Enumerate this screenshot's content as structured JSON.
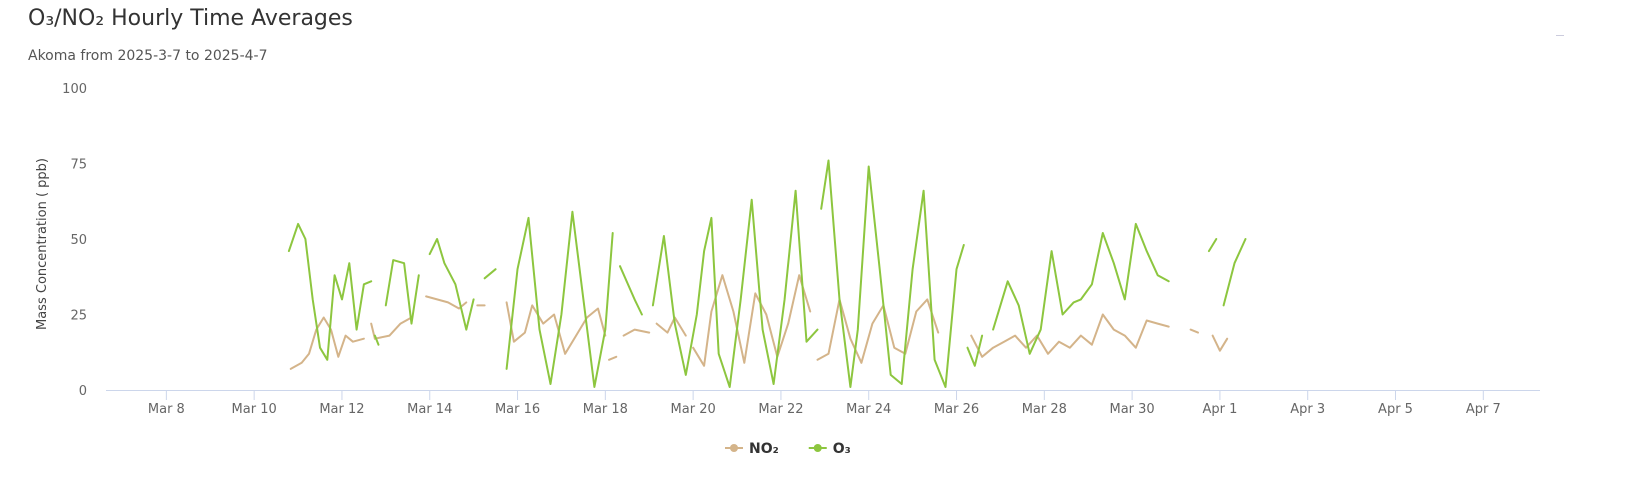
{
  "header": {
    "title": "O₃/NO₂ Hourly Time Averages",
    "subtitle": "Akoma from 2025-3-7 to 2025-4-7"
  },
  "chart_data": {
    "type": "line",
    "ylabel": "Mass Concentration ( ppb)",
    "ylim": [
      0,
      100
    ],
    "yticks": [
      0,
      25,
      50,
      75,
      100
    ],
    "xlim": [
      "2025-03-06 15:00",
      "2025-04-08 07:00"
    ],
    "xticks": [
      {
        "date": "2025-03-08",
        "label": "Mar 8"
      },
      {
        "date": "2025-03-10",
        "label": "Mar 10"
      },
      {
        "date": "2025-03-12",
        "label": "Mar 12"
      },
      {
        "date": "2025-03-14",
        "label": "Mar 14"
      },
      {
        "date": "2025-03-16",
        "label": "Mar 16"
      },
      {
        "date": "2025-03-18",
        "label": "Mar 18"
      },
      {
        "date": "2025-03-20",
        "label": "Mar 20"
      },
      {
        "date": "2025-03-22",
        "label": "Mar 22"
      },
      {
        "date": "2025-03-24",
        "label": "Mar 24"
      },
      {
        "date": "2025-03-26",
        "label": "Mar 26"
      },
      {
        "date": "2025-03-28",
        "label": "Mar 28"
      },
      {
        "date": "2025-03-30",
        "label": "Mar 30"
      },
      {
        "date": "2025-04-01",
        "label": "Apr 1"
      },
      {
        "date": "2025-04-03",
        "label": "Apr 3"
      },
      {
        "date": "2025-04-05",
        "label": "Apr 5"
      },
      {
        "date": "2025-04-07",
        "label": "Apr 7"
      }
    ],
    "grid": false,
    "legend_position": "bottom-center",
    "series": [
      {
        "name": "NO₂",
        "color": "#d4b48a",
        "segments": [
          [
            [
              "2025-03-10 20:00",
              7
            ],
            [
              "2025-03-11 02:00",
              9
            ],
            [
              "2025-03-11 06:00",
              12
            ],
            [
              "2025-03-11 10:00",
              20
            ],
            [
              "2025-03-11 14:00",
              24
            ],
            [
              "2025-03-11 18:00",
              20
            ],
            [
              "2025-03-11 22:00",
              11
            ],
            [
              "2025-03-12 02:00",
              18
            ],
            [
              "2025-03-12 06:00",
              16
            ],
            [
              "2025-03-12 12:00",
              17
            ]
          ],
          [
            [
              "2025-03-12 16:00",
              22
            ],
            [
              "2025-03-12 18:00",
              17
            ]
          ],
          [
            [
              "2025-03-12 18:00",
              17
            ],
            [
              "2025-03-13 02:00",
              18
            ],
            [
              "2025-03-13 08:00",
              22
            ],
            [
              "2025-03-13 14:00",
              24
            ]
          ],
          [
            [
              "2025-03-13 22:00",
              31
            ],
            [
              "2025-03-14 04:00",
              30
            ],
            [
              "2025-03-14 10:00",
              29
            ],
            [
              "2025-03-14 16:00",
              27
            ],
            [
              "2025-03-14 20:00",
              29
            ]
          ],
          [
            [
              "2025-03-15 02:00",
              28
            ],
            [
              "2025-03-15 06:00",
              28
            ]
          ],
          [
            [
              "2025-03-15 18:00",
              29
            ],
            [
              "2025-03-15 22:00",
              16
            ],
            [
              "2025-03-16 04:00",
              19
            ],
            [
              "2025-03-16 08:00",
              28
            ],
            [
              "2025-03-16 14:00",
              22
            ],
            [
              "2025-03-16 20:00",
              25
            ],
            [
              "2025-03-17 02:00",
              12
            ],
            [
              "2025-03-17 08:00",
              18
            ],
            [
              "2025-03-17 14:00",
              24
            ],
            [
              "2025-03-17 20:00",
              27
            ],
            [
              "2025-03-18 00:00",
              18
            ]
          ],
          [
            [
              "2025-03-18 02:00",
              10
            ],
            [
              "2025-03-18 06:00",
              11
            ]
          ],
          [
            [
              "2025-03-18 10:00",
              18
            ],
            [
              "2025-03-18 16:00",
              20
            ],
            [
              "2025-03-19 00:00",
              19
            ]
          ],
          [
            [
              "2025-03-19 04:00",
              22
            ],
            [
              "2025-03-19 10:00",
              19
            ],
            [
              "2025-03-19 14:00",
              24
            ],
            [
              "2025-03-19 20:00",
              18
            ]
          ],
          [
            [
              "2025-03-20 00:00",
              14
            ],
            [
              "2025-03-20 06:00",
              8
            ],
            [
              "2025-03-20 10:00",
              26
            ],
            [
              "2025-03-20 16:00",
              38
            ],
            [
              "2025-03-20 22:00",
              26
            ],
            [
              "2025-03-21 04:00",
              9
            ],
            [
              "2025-03-21 10:00",
              32
            ],
            [
              "2025-03-21 16:00",
              25
            ],
            [
              "2025-03-21 22:00",
              11
            ],
            [
              "2025-03-22 04:00",
              22
            ],
            [
              "2025-03-22 10:00",
              38
            ],
            [
              "2025-03-22 16:00",
              26
            ]
          ],
          [
            [
              "2025-03-22 20:00",
              10
            ],
            [
              "2025-03-23 02:00",
              12
            ],
            [
              "2025-03-23 08:00",
              30
            ],
            [
              "2025-03-23 14:00",
              17
            ],
            [
              "2025-03-23 20:00",
              9
            ],
            [
              "2025-03-24 02:00",
              22
            ],
            [
              "2025-03-24 08:00",
              28
            ],
            [
              "2025-03-24 14:00",
              14
            ],
            [
              "2025-03-24 20:00",
              12
            ],
            [
              "2025-03-25 02:00",
              26
            ],
            [
              "2025-03-25 08:00",
              30
            ],
            [
              "2025-03-25 14:00",
              19
            ]
          ],
          [
            [
              "2025-03-26 08:00",
              18
            ],
            [
              "2025-03-26 14:00",
              11
            ],
            [
              "2025-03-26 20:00",
              14
            ],
            [
              "2025-03-27 02:00",
              16
            ],
            [
              "2025-03-27 08:00",
              18
            ],
            [
              "2025-03-27 14:00",
              14
            ],
            [
              "2025-03-27 20:00",
              18
            ],
            [
              "2025-03-28 02:00",
              12
            ],
            [
              "2025-03-28 08:00",
              16
            ],
            [
              "2025-03-28 14:00",
              14
            ],
            [
              "2025-03-28 20:00",
              18
            ],
            [
              "2025-03-29 02:00",
              15
            ],
            [
              "2025-03-29 08:00",
              25
            ],
            [
              "2025-03-29 14:00",
              20
            ],
            [
              "2025-03-29 20:00",
              18
            ],
            [
              "2025-03-30 02:00",
              14
            ],
            [
              "2025-03-30 08:00",
              23
            ],
            [
              "2025-03-30 14:00",
              22
            ],
            [
              "2025-03-30 20:00",
              21
            ]
          ],
          [
            [
              "2025-03-31 08:00",
              20
            ],
            [
              "2025-03-31 12:00",
              19
            ]
          ],
          [
            [
              "2025-03-31 20:00",
              18
            ],
            [
              "2025-04-01 00:00",
              13
            ],
            [
              "2025-04-01 04:00",
              17
            ]
          ]
        ]
      },
      {
        "name": "O₃",
        "color": "#8dc63f",
        "segments": [
          [
            [
              "2025-03-10 19:00",
              46
            ],
            [
              "2025-03-11 00:00",
              55
            ],
            [
              "2025-03-11 04:00",
              50
            ],
            [
              "2025-03-11 08:00",
              30
            ],
            [
              "2025-03-11 12:00",
              14
            ],
            [
              "2025-03-11 16:00",
              10
            ],
            [
              "2025-03-11 20:00",
              38
            ],
            [
              "2025-03-12 00:00",
              30
            ],
            [
              "2025-03-12 04:00",
              42
            ],
            [
              "2025-03-12 08:00",
              20
            ],
            [
              "2025-03-12 12:00",
              35
            ],
            [
              "2025-03-12 16:00",
              36
            ]
          ],
          [
            [
              "2025-03-12 18:00",
              18
            ],
            [
              "2025-03-12 20:00",
              15
            ]
          ],
          [
            [
              "2025-03-13 00:00",
              28
            ],
            [
              "2025-03-13 04:00",
              43
            ],
            [
              "2025-03-13 10:00",
              42
            ],
            [
              "2025-03-13 14:00",
              22
            ],
            [
              "2025-03-13 18:00",
              38
            ]
          ],
          [
            [
              "2025-03-14 00:00",
              45
            ],
            [
              "2025-03-14 04:00",
              50
            ],
            [
              "2025-03-14 08:00",
              42
            ],
            [
              "2025-03-14 14:00",
              35
            ],
            [
              "2025-03-14 20:00",
              20
            ],
            [
              "2025-03-15 00:00",
              30
            ]
          ],
          [
            [
              "2025-03-15 06:00",
              37
            ],
            [
              "2025-03-15 12:00",
              40
            ]
          ],
          [
            [
              "2025-03-15 18:00",
              7
            ],
            [
              "2025-03-16 00:00",
              40
            ],
            [
              "2025-03-16 06:00",
              57
            ],
            [
              "2025-03-16 12:00",
              20
            ],
            [
              "2025-03-16 18:00",
              2
            ],
            [
              "2025-03-17 00:00",
              25
            ],
            [
              "2025-03-17 06:00",
              59
            ],
            [
              "2025-03-17 12:00",
              30
            ],
            [
              "2025-03-17 18:00",
              1
            ],
            [
              "2025-03-18 00:00",
              20
            ],
            [
              "2025-03-18 04:00",
              52
            ]
          ],
          [
            [
              "2025-03-18 08:00",
              41
            ],
            [
              "2025-03-18 16:00",
              30
            ],
            [
              "2025-03-18 20:00",
              25
            ]
          ],
          [
            [
              "2025-03-19 02:00",
              28
            ],
            [
              "2025-03-19 08:00",
              51
            ],
            [
              "2025-03-19 14:00",
              22
            ],
            [
              "2025-03-19 20:00",
              5
            ],
            [
              "2025-03-20 02:00",
              25
            ],
            [
              "2025-03-20 06:00",
              46
            ],
            [
              "2025-03-20 10:00",
              57
            ],
            [
              "2025-03-20 14:00",
              12
            ],
            [
              "2025-03-20 20:00",
              1
            ],
            [
              "2025-03-21 02:00",
              30
            ],
            [
              "2025-03-21 08:00",
              63
            ],
            [
              "2025-03-21 14:00",
              20
            ],
            [
              "2025-03-21 20:00",
              2
            ],
            [
              "2025-03-22 02:00",
              30
            ],
            [
              "2025-03-22 08:00",
              66
            ],
            [
              "2025-03-22 14:00",
              16
            ],
            [
              "2025-03-22 20:00",
              20
            ]
          ],
          [
            [
              "2025-03-22 22:00",
              60
            ],
            [
              "2025-03-23 02:00",
              76
            ],
            [
              "2025-03-23 08:00",
              30
            ],
            [
              "2025-03-23 14:00",
              1
            ],
            [
              "2025-03-23 18:00",
              20
            ],
            [
              "2025-03-24 00:00",
              74
            ],
            [
              "2025-03-24 06:00",
              40
            ],
            [
              "2025-03-24 12:00",
              5
            ],
            [
              "2025-03-24 18:00",
              2
            ],
            [
              "2025-03-25 00:00",
              40
            ],
            [
              "2025-03-25 06:00",
              66
            ],
            [
              "2025-03-25 12:00",
              10
            ],
            [
              "2025-03-25 18:00",
              1
            ],
            [
              "2025-03-26 00:00",
              40
            ],
            [
              "2025-03-26 04:00",
              48
            ]
          ],
          [
            [
              "2025-03-26 06:00",
              14
            ],
            [
              "2025-03-26 10:00",
              8
            ],
            [
              "2025-03-26 14:00",
              18
            ]
          ],
          [
            [
              "2025-03-26 20:00",
              20
            ],
            [
              "2025-03-27 04:00",
              36
            ],
            [
              "2025-03-27 10:00",
              28
            ],
            [
              "2025-03-27 16:00",
              12
            ],
            [
              "2025-03-27 22:00",
              20
            ],
            [
              "2025-03-28 04:00",
              46
            ],
            [
              "2025-03-28 10:00",
              25
            ],
            [
              "2025-03-28 16:00",
              29
            ],
            [
              "2025-03-28 20:00",
              30
            ],
            [
              "2025-03-29 02:00",
              35
            ],
            [
              "2025-03-29 08:00",
              52
            ],
            [
              "2025-03-29 14:00",
              42
            ],
            [
              "2025-03-29 20:00",
              30
            ],
            [
              "2025-03-30 02:00",
              55
            ],
            [
              "2025-03-30 08:00",
              46
            ],
            [
              "2025-03-30 14:00",
              38
            ],
            [
              "2025-03-30 20:00",
              36
            ]
          ],
          [
            [
              "2025-03-31 18:00",
              46
            ],
            [
              "2025-03-31 22:00",
              50
            ]
          ],
          [
            [
              "2025-04-01 02:00",
              28
            ],
            [
              "2025-04-01 08:00",
              42
            ],
            [
              "2025-04-01 14:00",
              50
            ]
          ]
        ]
      }
    ]
  }
}
